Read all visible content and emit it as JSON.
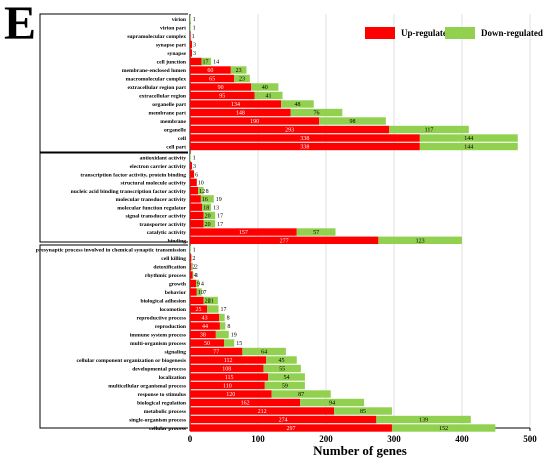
{
  "panel_label": "E",
  "colors": {
    "up": "#ff0000",
    "down": "#92d050",
    "grid": "#d9d9d9"
  },
  "chart_data": {
    "type": "bar",
    "orientation": "horizontal",
    "stacked": true,
    "xlabel": "Number of genes",
    "xlim": [
      0,
      500
    ],
    "xticks": [
      0,
      100,
      200,
      300,
      400,
      500
    ],
    "grid": true,
    "legend_placement": "top-right",
    "series": [
      {
        "name": "Up-regulated",
        "key": "up"
      },
      {
        "name": "Down-regulated",
        "key": "down"
      }
    ],
    "groups": [
      {
        "categories": [
          {
            "label": "virion",
            "up": 0,
            "down": 1
          },
          {
            "label": "virion part",
            "up": 0,
            "down": 1
          },
          {
            "label": "supramolecular complex",
            "up": 1,
            "down": 0
          },
          {
            "label": "synapse part",
            "up": 3,
            "down": 0
          },
          {
            "label": "synapse",
            "up": 3,
            "down": 0
          },
          {
            "label": "cell junction",
            "up": 17,
            "down": 14
          },
          {
            "label": "membrane-enclosed lumen",
            "up": 60,
            "down": 23
          },
          {
            "label": "macromolecular complex",
            "up": 65,
            "down": 23
          },
          {
            "label": "extracellular region part",
            "up": 90,
            "down": 40
          },
          {
            "label": "extracellular region",
            "up": 95,
            "down": 41
          },
          {
            "label": "organelle part",
            "up": 134,
            "down": 48
          },
          {
            "label": "membrane part",
            "up": 148,
            "down": 76
          },
          {
            "label": "membrane",
            "up": 190,
            "down": 98
          },
          {
            "label": "organelle",
            "up": 293,
            "down": 117
          },
          {
            "label": "cell",
            "up": 338,
            "down": 144
          },
          {
            "label": "cell part",
            "up": 338,
            "down": 144
          }
        ]
      },
      {
        "categories": [
          {
            "label": "antioxidant activity",
            "up": 0,
            "down": 1
          },
          {
            "label": "electron carrier activity",
            "up": 3,
            "down": 0
          },
          {
            "label": "transcription factor activity, protein binding",
            "up": 6,
            "down": 0
          },
          {
            "label": "structural molecule activity",
            "up": 10,
            "down": 0
          },
          {
            "label": "nucleic acid binding transcription factor activity",
            "up": 12,
            "down": 8
          },
          {
            "label": "molecular transducer activity",
            "up": 16,
            "down": 19
          },
          {
            "label": "molecular function regulator",
            "up": 18,
            "down": 13
          },
          {
            "label": "signal transducer activity",
            "up": 20,
            "down": 17
          },
          {
            "label": "transporter activity",
            "up": 20,
            "down": 17
          },
          {
            "label": "catalytic activity",
            "up": 157,
            "down": 57
          },
          {
            "label": "binding",
            "up": 277,
            "down": 123
          }
        ]
      },
      {
        "categories": [
          {
            "label": "presynaptic process involved in chemical synaptic transmission",
            "up": 0,
            "down": 1
          },
          {
            "label": "cell killing",
            "up": 2,
            "down": 0
          },
          {
            "label": "detoxification",
            "up": 2,
            "down": 2
          },
          {
            "label": "rhythmic process",
            "up": 4,
            "down": 1
          },
          {
            "label": "growth",
            "up": 9,
            "down": 4
          },
          {
            "label": "behavior",
            "up": 10,
            "down": 7
          },
          {
            "label": "biological adhesion",
            "up": 20,
            "down": 21
          },
          {
            "label": "locomotion",
            "up": 25,
            "down": 17
          },
          {
            "label": "reproductive process",
            "up": 43,
            "down": 8
          },
          {
            "label": "reproduction",
            "up": 44,
            "down": 8
          },
          {
            "label": "immune system process",
            "up": 38,
            "down": 19
          },
          {
            "label": "multi-organism process",
            "up": 50,
            "down": 15
          },
          {
            "label": "signaling",
            "up": 77,
            "down": 64
          },
          {
            "label": "cellular component organization or biogenesis",
            "up": 112,
            "down": 45
          },
          {
            "label": "developmental process",
            "up": 108,
            "down": 55
          },
          {
            "label": "localization",
            "up": 115,
            "down": 54
          },
          {
            "label": "multicellular organismal process",
            "up": 110,
            "down": 59
          },
          {
            "label": "response to stimulus",
            "up": 120,
            "down": 87
          },
          {
            "label": "biological regulation",
            "up": 162,
            "down": 94
          },
          {
            "label": "metabolic process",
            "up": 212,
            "down": 85
          },
          {
            "label": "single-organism process",
            "up": 274,
            "down": 139
          },
          {
            "label": "cellular process",
            "up": 297,
            "down": 152
          }
        ]
      }
    ]
  }
}
